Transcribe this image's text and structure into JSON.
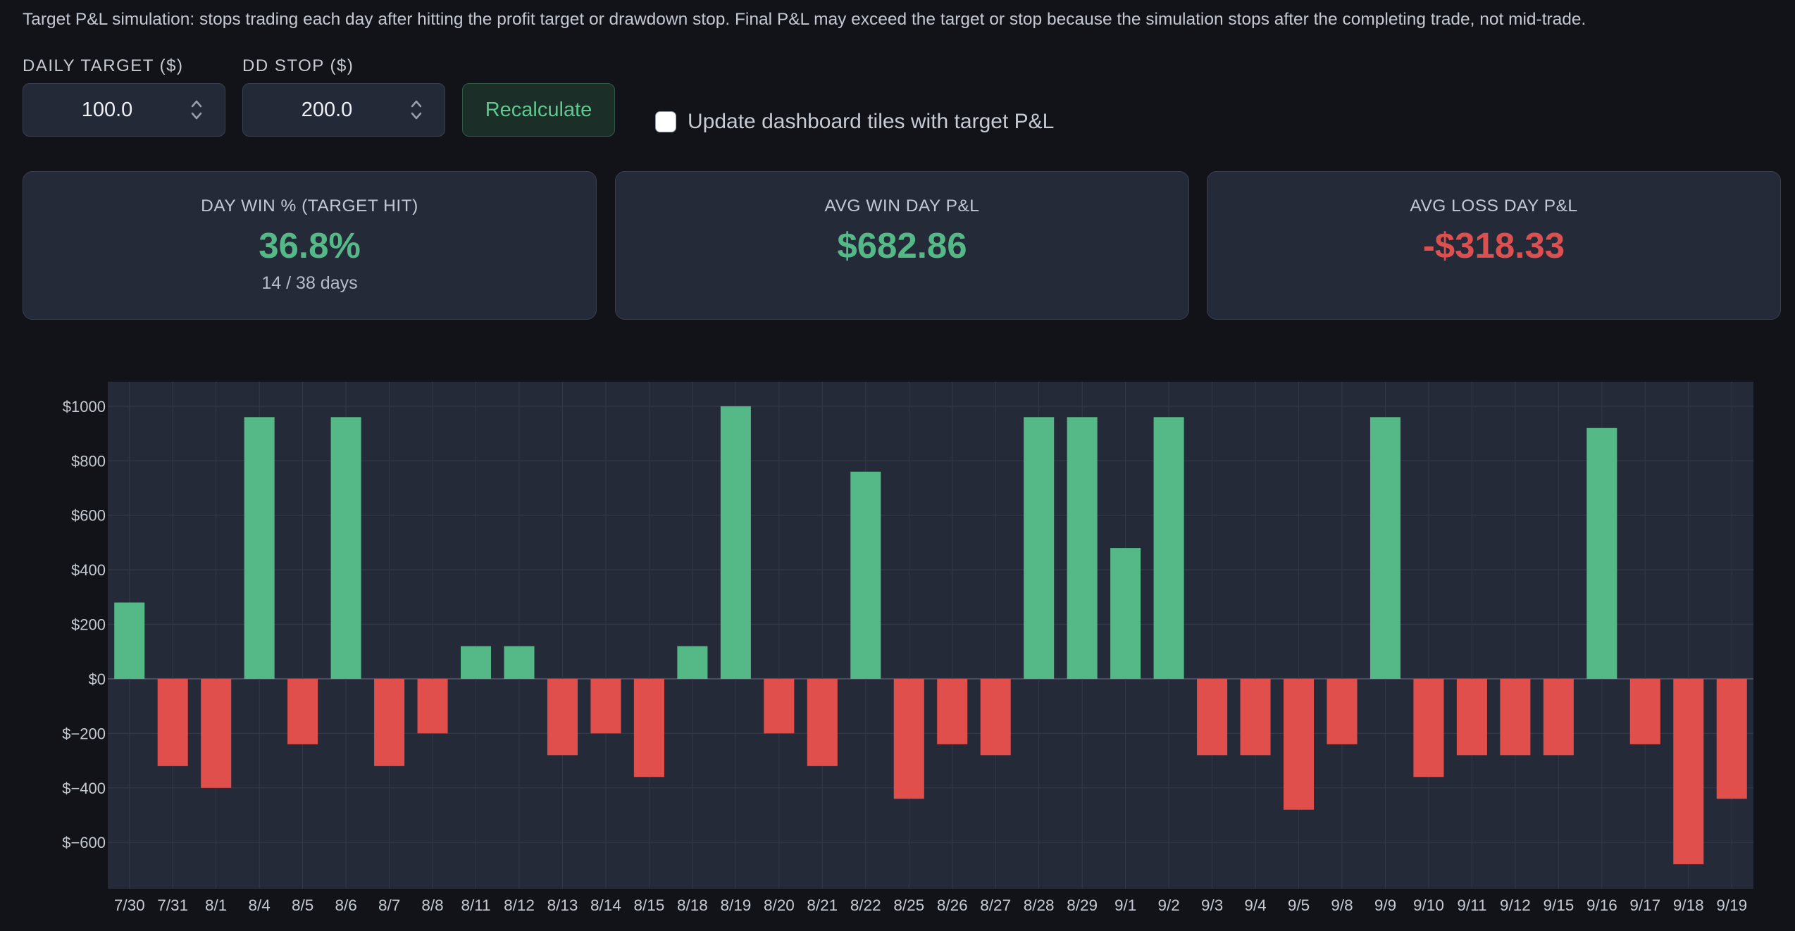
{
  "intro_text": "Target P&L simulation: stops trading each day after hitting the profit target or drawdown stop. Final P&L may exceed the target or stop because the simulation stops after the completing trade, not mid-trade.",
  "controls": {
    "daily_target_label": "DAILY TARGET ($)",
    "daily_target_value": "100.0",
    "dd_stop_label": "DD STOP ($)",
    "dd_stop_value": "200.0",
    "recalculate_label": "Recalculate",
    "update_tiles_label": "Update dashboard tiles with target P&L",
    "update_tiles_checked": false
  },
  "cards": [
    {
      "title": "DAY WIN % (TARGET HIT)",
      "value": "36.8%",
      "sub": "14 / 38 days",
      "tone": "green"
    },
    {
      "title": "AVG WIN DAY P&L",
      "value": "$682.86",
      "sub": "",
      "tone": "green"
    },
    {
      "title": "AVG LOSS DAY P&L",
      "value": "-$318.33",
      "sub": "",
      "tone": "red"
    }
  ],
  "colors": {
    "positive": "#55b987",
    "negative": "#e04f4c",
    "plot_bg": "#252a39",
    "grid": "#333948",
    "axis_text": "#c5cad3"
  },
  "chart_data": {
    "type": "bar",
    "categories": [
      "7/30",
      "7/31",
      "8/1",
      "8/4",
      "8/5",
      "8/6",
      "8/7",
      "8/8",
      "8/11",
      "8/12",
      "8/13",
      "8/14",
      "8/15",
      "8/18",
      "8/19",
      "8/20",
      "8/21",
      "8/22",
      "8/25",
      "8/26",
      "8/27",
      "8/28",
      "8/29",
      "9/1",
      "9/2",
      "9/3",
      "9/4",
      "9/5",
      "9/8",
      "9/9",
      "9/10",
      "9/11",
      "9/12",
      "9/15",
      "9/16",
      "9/17",
      "9/18",
      "9/19"
    ],
    "values": [
      280,
      -320,
      -400,
      960,
      -240,
      960,
      -320,
      -200,
      120,
      120,
      -280,
      -200,
      -360,
      120,
      1000,
      -200,
      -320,
      760,
      -440,
      -240,
      -280,
      960,
      960,
      480,
      960,
      -280,
      -280,
      -480,
      -240,
      960,
      -360,
      -280,
      -280,
      -280,
      920,
      -240,
      -680,
      -440
    ],
    "ylim": [
      -770,
      1090
    ],
    "y_ticks": [
      1000,
      800,
      600,
      400,
      200,
      0,
      -200,
      -400,
      -600
    ],
    "y_tick_labels": [
      "$1000",
      "$800",
      "$600",
      "$400",
      "$200",
      "$0",
      "$−200",
      "$−400",
      "$−600"
    ],
    "grid": true,
    "legend": "none"
  }
}
